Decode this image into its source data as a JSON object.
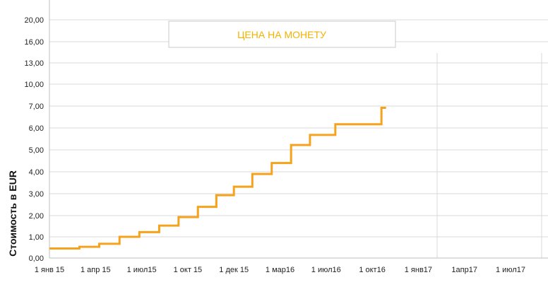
{
  "chart_data": {
    "type": "line",
    "title": "ЦЕНА НА МОНЕТУ",
    "ylabel": "Стоимость в EUR",
    "xlabel": "",
    "y_ticks": [
      "0,00",
      "1,00",
      "2,00",
      "3,00",
      "4,00",
      "5,00",
      "6,00",
      "7,00",
      "10,00",
      "13,00",
      "16,00",
      "20,00"
    ],
    "x_ticks": [
      "1 янв 15",
      "1 апр 15",
      "1 июл15",
      "1 окт  15",
      "1 дек 15",
      "1 мар16",
      "1 июл16",
      "1 окт16",
      "1 янв17",
      "1апр17",
      "1 июл17"
    ],
    "grid": true,
    "legend": "none",
    "series_color": "#f5a21d",
    "series": [
      {
        "x": [
          "1 янв 15",
          "1 апр 15",
          "1 июл15",
          "1 окт  15",
          "1 дек 15",
          "1 мар16",
          "1 июл16"
        ],
        "steps": [
          {
            "start": 0.0,
            "value": 0.45
          },
          {
            "start": 0.65,
            "value": 0.53
          },
          {
            "start": 1.08,
            "value": 0.67
          },
          {
            "start": 1.52,
            "value": 1.0
          },
          {
            "start": 1.95,
            "value": 1.22
          },
          {
            "start": 2.38,
            "value": 1.53
          },
          {
            "start": 2.8,
            "value": 1.93
          },
          {
            "start": 3.22,
            "value": 2.4
          },
          {
            "start": 3.62,
            "value": 2.93
          },
          {
            "start": 4.0,
            "value": 3.32
          },
          {
            "start": 4.4,
            "value": 3.9
          },
          {
            "start": 4.82,
            "value": 4.4
          },
          {
            "start": 5.24,
            "value": 5.22
          },
          {
            "start": 5.65,
            "value": 5.68
          },
          {
            "start": 6.2,
            "value": 6.17
          },
          {
            "start": 7.2,
            "value": 6.92
          }
        ],
        "end": 7.3
      }
    ]
  }
}
